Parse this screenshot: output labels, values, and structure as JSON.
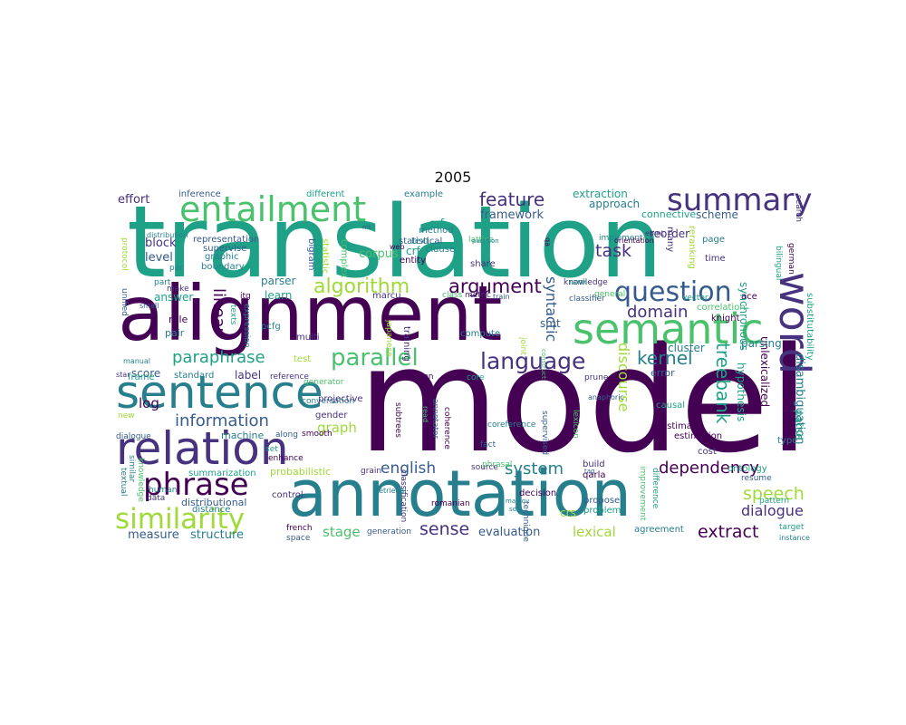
{
  "title": "2005",
  "colors": [
    "#440154",
    "#46327e",
    "#365c8d",
    "#277f8e",
    "#1fa187",
    "#4ac16d",
    "#a0da39",
    "#fde725"
  ],
  "words": [
    {
      "text": "model"
    },
    {
      "text": "translation"
    },
    {
      "text": "alignment"
    },
    {
      "text": "annotation"
    },
    {
      "text": "sentence"
    },
    {
      "text": "relation"
    },
    {
      "text": "semantic"
    },
    {
      "text": "word"
    },
    {
      "text": "entailment"
    },
    {
      "text": "summary"
    },
    {
      "text": "question"
    },
    {
      "text": "phrase"
    },
    {
      "text": "similarity"
    },
    {
      "text": "language"
    },
    {
      "text": "parallel"
    },
    {
      "text": "algorithm"
    },
    {
      "text": "argument"
    },
    {
      "text": "feature"
    },
    {
      "text": "task"
    },
    {
      "text": "paraphrase"
    },
    {
      "text": "information"
    },
    {
      "text": "dependency"
    },
    {
      "text": "kernel"
    },
    {
      "text": "domain"
    },
    {
      "text": "treebank"
    },
    {
      "text": "discourse"
    },
    {
      "text": "system"
    },
    {
      "text": "english"
    },
    {
      "text": "speech"
    },
    {
      "text": "dialogue"
    },
    {
      "text": "extract"
    },
    {
      "text": "sense"
    },
    {
      "text": "evaluation"
    },
    {
      "text": "lexical"
    },
    {
      "text": "linear"
    },
    {
      "text": "syntactic"
    },
    {
      "text": "graph"
    },
    {
      "text": "log"
    },
    {
      "text": "stage"
    },
    {
      "text": "measure"
    },
    {
      "text": "structure"
    },
    {
      "text": "corpus"
    },
    {
      "text": "crfs"
    },
    {
      "text": "crf"
    },
    {
      "text": "framework"
    },
    {
      "text": "approach"
    },
    {
      "text": "extraction"
    },
    {
      "text": "effort"
    },
    {
      "text": "inference"
    },
    {
      "text": "different"
    },
    {
      "text": "example"
    },
    {
      "text": "block"
    },
    {
      "text": "level"
    },
    {
      "text": "learn"
    },
    {
      "text": "parser"
    },
    {
      "text": "answer"
    },
    {
      "text": "score"
    },
    {
      "text": "label"
    },
    {
      "text": "frame"
    },
    {
      "text": "standard"
    },
    {
      "text": "rule"
    },
    {
      "text": "pair"
    },
    {
      "text": "cluster"
    },
    {
      "text": "hypothesis"
    },
    {
      "text": "unlexicalized"
    },
    {
      "text": "disambiguation"
    },
    {
      "text": "substitutability"
    },
    {
      "text": "parsing"
    },
    {
      "text": "parse"
    },
    {
      "text": "reorder"
    },
    {
      "text": "connective"
    },
    {
      "text": "scheme"
    },
    {
      "text": "smt"
    },
    {
      "text": "error"
    },
    {
      "text": "estimation"
    },
    {
      "text": "estimate"
    },
    {
      "text": "causal"
    },
    {
      "text": "cost"
    },
    {
      "text": "type"
    },
    {
      "text": "probabilistic"
    },
    {
      "text": "machine"
    },
    {
      "text": "summarization"
    },
    {
      "text": "distributional"
    },
    {
      "text": "distance"
    },
    {
      "text": "control"
    },
    {
      "text": "french"
    },
    {
      "text": "space"
    },
    {
      "text": "generation"
    },
    {
      "text": "agreement"
    },
    {
      "text": "propose"
    },
    {
      "text": "problem"
    },
    {
      "text": "decision"
    },
    {
      "text": "technique"
    },
    {
      "text": "romanian"
    },
    {
      "text": "source"
    },
    {
      "text": "build"
    },
    {
      "text": "qarla"
    },
    {
      "text": "target"
    },
    {
      "text": "instance"
    },
    {
      "text": "pattern"
    },
    {
      "text": "resume"
    },
    {
      "text": "ontology"
    },
    {
      "text": "synchronous"
    },
    {
      "text": "bilingual"
    },
    {
      "text": "german"
    },
    {
      "text": "search"
    },
    {
      "text": "time"
    },
    {
      "text": "page"
    },
    {
      "text": "knight"
    },
    {
      "text": "correlation"
    },
    {
      "text": "vector"
    },
    {
      "text": "ace"
    },
    {
      "text": "reranking"
    },
    {
      "text": "many"
    },
    {
      "text": "share"
    },
    {
      "text": "lattice"
    },
    {
      "text": "clause"
    },
    {
      "text": "entity"
    },
    {
      "text": "statistical"
    },
    {
      "text": "method"
    },
    {
      "text": "text"
    },
    {
      "text": "bigram"
    },
    {
      "text": "statistic"
    },
    {
      "text": "complex"
    },
    {
      "text": "representation"
    },
    {
      "text": "supervise"
    },
    {
      "text": "graphic"
    },
    {
      "text": "boundary"
    },
    {
      "text": "human"
    },
    {
      "text": "data"
    },
    {
      "text": "distribution"
    },
    {
      "text": "par"
    },
    {
      "text": "protocol"
    },
    {
      "text": "unified"
    },
    {
      "text": "make"
    },
    {
      "text": "part"
    },
    {
      "text": "texts"
    },
    {
      "text": "expression"
    },
    {
      "text": "itg"
    },
    {
      "text": "marcu"
    },
    {
      "text": "pcfg"
    },
    {
      "text": "multi"
    },
    {
      "text": "japanese"
    },
    {
      "text": "training"
    },
    {
      "text": "compute"
    },
    {
      "text": "joint"
    },
    {
      "text": "class"
    },
    {
      "text": "metric"
    },
    {
      "text": "train"
    },
    {
      "text": "general"
    },
    {
      "text": "knowledge"
    },
    {
      "text": "classifier"
    },
    {
      "text": "implement"
    },
    {
      "text": "orientation"
    },
    {
      "text": "ebmt"
    },
    {
      "text": "small"
    },
    {
      "text": "manual"
    },
    {
      "text": "star"
    },
    {
      "text": "test"
    },
    {
      "text": "reference"
    },
    {
      "text": "generator"
    },
    {
      "text": "conversation"
    },
    {
      "text": "detection"
    },
    {
      "text": "core"
    },
    {
      "text": "prune"
    },
    {
      "text": "anaphoric"
    },
    {
      "text": "new"
    },
    {
      "text": "projective"
    },
    {
      "text": "gender"
    },
    {
      "text": "smooth"
    },
    {
      "text": "along"
    },
    {
      "text": "set"
    },
    {
      "text": "enhance"
    },
    {
      "text": "dialogue"
    },
    {
      "text": "similar"
    },
    {
      "text": "textual"
    },
    {
      "text": "knowledge"
    },
    {
      "text": "rank"
    },
    {
      "text": "grain"
    },
    {
      "text": "fact"
    },
    {
      "text": "phrasal"
    },
    {
      "text": "coreference"
    },
    {
      "text": "coherence"
    },
    {
      "text": "annotator"
    },
    {
      "text": "subtrees"
    },
    {
      "text": "classification"
    },
    {
      "text": "supervised"
    },
    {
      "text": "lexicon"
    },
    {
      "text": "markov"
    },
    {
      "text": "sdi"
    },
    {
      "text": "retrieval"
    },
    {
      "text": "improvement"
    },
    {
      "text": "difference"
    },
    {
      "text": "tag"
    },
    {
      "text": "web"
    },
    {
      "text": "mt"
    },
    {
      "text": "crs"
    },
    {
      "text": "read"
    },
    {
      "text": "construct"
    },
    {
      "text": "partition"
    },
    {
      "text": "qa"
    }
  ]
}
